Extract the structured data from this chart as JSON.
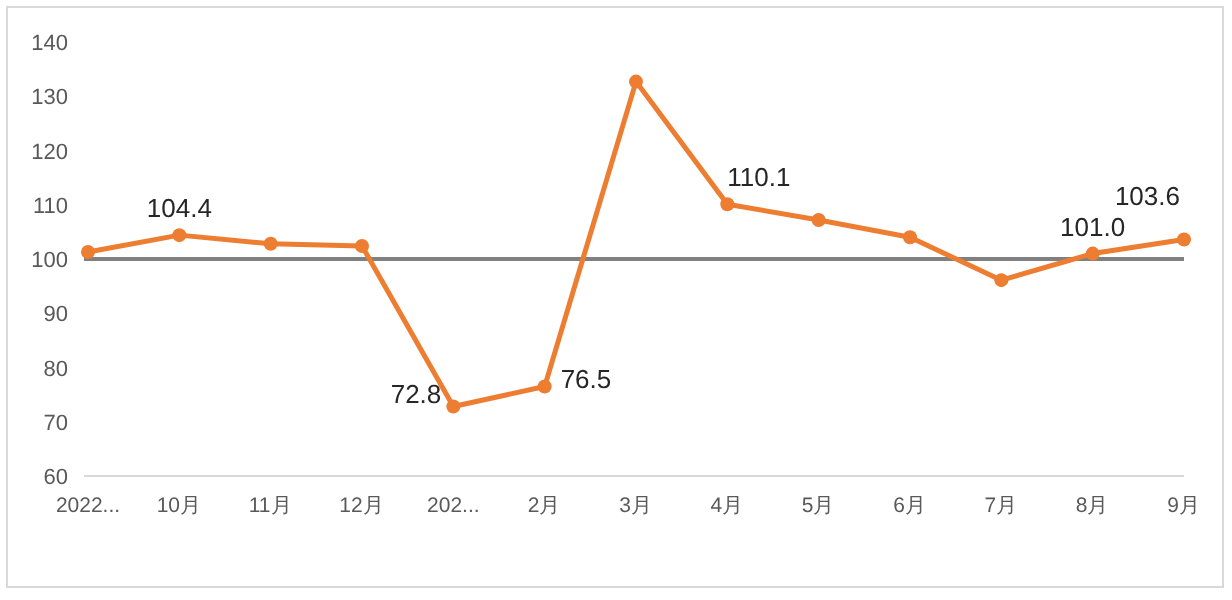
{
  "chart_data": {
    "type": "line",
    "categories": [
      "2022...",
      "10月",
      "11月",
      "12月",
      "202...",
      "2月",
      "3月",
      "4月",
      "5月",
      "6月",
      "7月",
      "8月",
      "9月"
    ],
    "series": [
      {
        "color": "#ed7d31",
        "values": [
          101.3,
          104.4,
          102.8,
          102.4,
          72.8,
          76.5,
          132.7,
          110.1,
          107.2,
          104.0,
          96.1,
          101.0,
          103.6
        ],
        "value_labels": [
          null,
          "104.4",
          null,
          null,
          "72.8",
          "76.5",
          null,
          "110.1",
          null,
          null,
          null,
          "101.0",
          "103.6"
        ]
      }
    ],
    "ylim": [
      60,
      140
    ],
    "yticks": [
      60,
      70,
      80,
      90,
      100,
      110,
      120,
      130,
      140
    ],
    "ref_lines": [
      {
        "axis": "y",
        "value": 100,
        "color": "#808080"
      }
    ],
    "marker": "circle",
    "line_style": "solid",
    "grid": false
  }
}
